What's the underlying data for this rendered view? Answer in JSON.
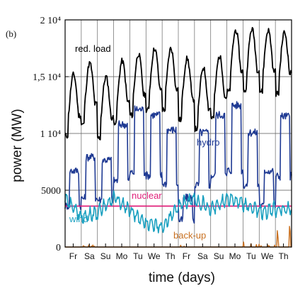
{
  "chart_data": {
    "type": "line",
    "panel_label": "(b)",
    "xlabel": "time (days)",
    "ylabel": "power (MW)",
    "ylim": [
      0,
      20000
    ],
    "y_ticks": [
      {
        "value": 0,
        "label": "0"
      },
      {
        "value": 5000,
        "label": "5000"
      },
      {
        "value": 10000,
        "label": "1 10⁴"
      },
      {
        "value": 15000,
        "label": "1,5 10⁴"
      },
      {
        "value": 20000,
        "label": "2 10⁴"
      }
    ],
    "categories": [
      "Fr",
      "Sa",
      "Su",
      "Mo",
      "Tu",
      "We",
      "Th",
      "Fr",
      "Sa",
      "Su",
      "Mo",
      "Tu",
      "We",
      "Th"
    ],
    "grid": true,
    "series": [
      {
        "name": "red. load",
        "color": "#000000",
        "values": [
          13400,
          14400,
          13200,
          14600,
          15200,
          15700,
          15700,
          14800,
          14000,
          15000,
          17300,
          17400,
          17300,
          17100
        ]
      },
      {
        "name": "hydro",
        "color": "#1f3a93",
        "values": [
          5600,
          6600,
          6400,
          9000,
          10100,
          9700,
          8600,
          3600,
          8400,
          9700,
          10400,
          8400,
          5600,
          9600
        ]
      },
      {
        "name": "nuclear",
        "color": "#e0207a",
        "values": [
          3600,
          3600,
          3600,
          3600,
          3600,
          3600,
          3600,
          3600,
          3600,
          3600,
          3600,
          3600,
          3600,
          3600
        ]
      },
      {
        "name": "wind",
        "color": "#1aa0c0",
        "values": [
          4200,
          2700,
          3000,
          4400,
          3200,
          2100,
          1700,
          3600,
          4200,
          3300,
          4300,
          3800,
          3100,
          3300
        ]
      },
      {
        "name": "back-up",
        "color": "#c87020",
        "values": [
          0,
          100,
          0,
          0,
          0,
          0,
          0,
          100,
          0,
          0,
          0,
          400,
          100,
          900
        ]
      }
    ]
  }
}
